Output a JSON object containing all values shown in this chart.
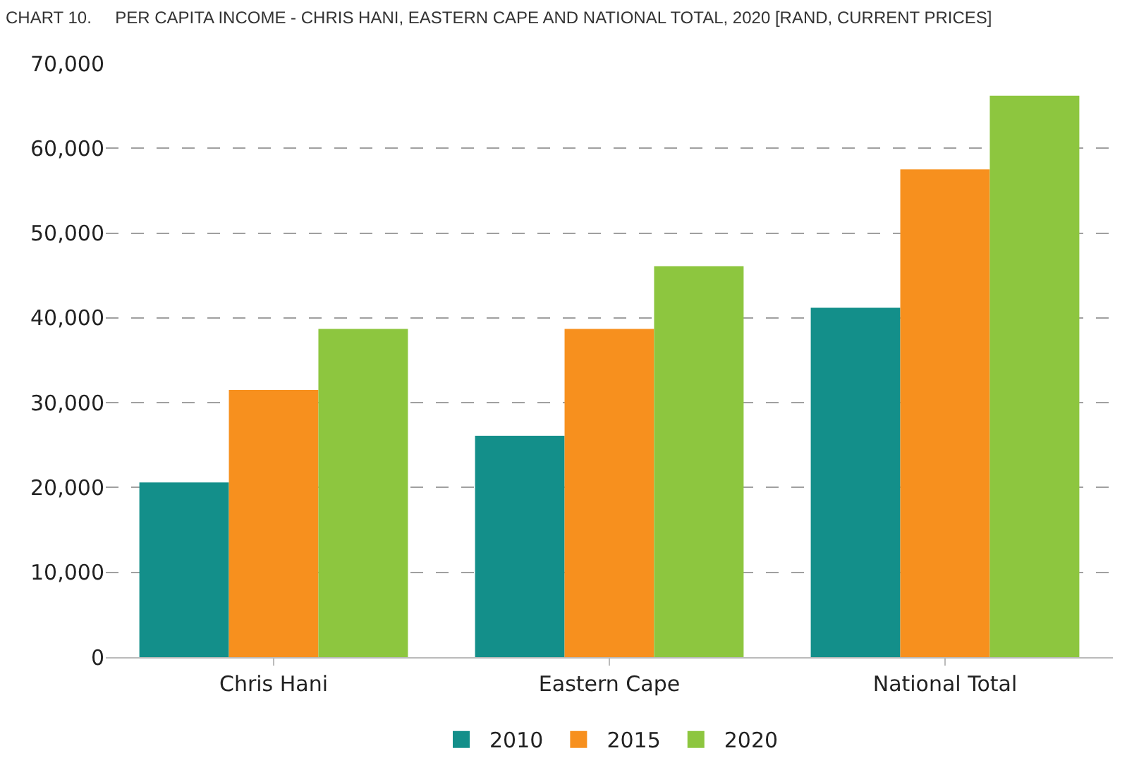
{
  "chart_data": {
    "type": "bar",
    "title": "CHART 10.     PER CAPITA INCOME - CHRIS HANI, EASTERN CAPE AND NATIONAL TOTAL, 2020 [RAND, CURRENT PRICES]",
    "categories": [
      "Chris Hani",
      "Eastern Cape",
      "National Total"
    ],
    "series": [
      {
        "name": "2010",
        "color": "#138f8a",
        "values": [
          20600,
          26100,
          41200
        ]
      },
      {
        "name": "2015",
        "color": "#f7901e",
        "values": [
          31500,
          38700,
          57500
        ]
      },
      {
        "name": "2020",
        "color": "#8dc63f",
        "values": [
          38700,
          46100,
          66200
        ]
      }
    ],
    "ylim": [
      0,
      70000
    ],
    "yticks": [
      {
        "value": 0,
        "label": "0"
      },
      {
        "value": 10000,
        "label": "10,000"
      },
      {
        "value": 20000,
        "label": "20,000"
      },
      {
        "value": 30000,
        "label": "30,000"
      },
      {
        "value": 40000,
        "label": "40,000"
      },
      {
        "value": 50000,
        "label": "50,000"
      },
      {
        "value": 60000,
        "label": "60,000"
      },
      {
        "value": 70000,
        "label": "70,000"
      }
    ],
    "grid": "y",
    "legend": "bottom"
  }
}
